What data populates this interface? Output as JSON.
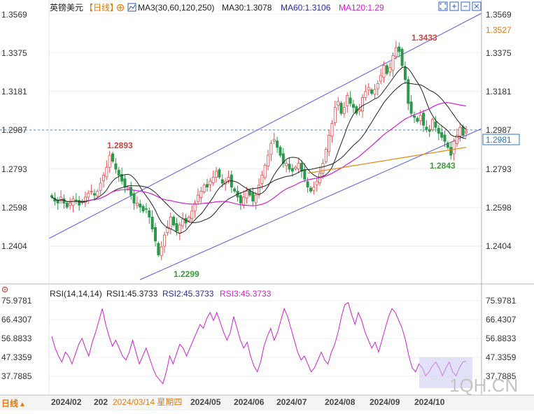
{
  "price_panel": {
    "symbol": "英镑美元",
    "period_tag": "【日线】",
    "ma_label": "MA3(30,60,120,250)",
    "ma30_label": "MA30:1.3078",
    "ma60_label": "MA60:1.3106",
    "ma120_label": "MA120:1.29",
    "y_ticks": [
      "1.3569",
      "1.3375",
      "1.3181",
      "1.2987",
      "1.2793",
      "1.2598",
      "1.2404"
    ],
    "high_label": "1.3527",
    "current_price": "1.2981",
    "annotations": {
      "a1": "1.2893",
      "a2": "1.2299",
      "a3": "1.3433",
      "a4": "1.2843"
    }
  },
  "rsi_panel": {
    "title": "RSI(14,14,14)",
    "rsi1_label": "RSI1:45.3733",
    "rsi2_label": "RSI2:45.3733",
    "rsi3_label": "RSI3:45.3733",
    "y_ticks": [
      "75.9781",
      "66.4307",
      "56.8833",
      "47.3359",
      "37.7885"
    ]
  },
  "footer": {
    "period_button": "日线",
    "x_labels": [
      "2024/02",
      "202",
      "2024/05",
      "2024/06",
      "2024/07",
      "2024/08",
      "2024/09",
      "2024/10"
    ],
    "cursor_date": "2024/03/14 星期四",
    "watermark": "1QH.CN"
  },
  "colors": {
    "up": "#e05050",
    "down": "#2a9a4a",
    "ma30": "#222222",
    "ma60": "#222222",
    "ma120": "#d020d0",
    "ma250": "#e08a10",
    "channel": "#5a5ae8",
    "rsi": "#d020d0"
  },
  "chart_data": [
    {
      "type": "candlestick",
      "title": "英镑美元 日线",
      "ylim": [
        1.233,
        1.36
      ],
      "y_ticks": [
        1.3569,
        1.3375,
        1.3181,
        1.2987,
        1.2793,
        1.2598,
        1.2404
      ],
      "x_axis": [
        "2024/02",
        "2024/05",
        "2024/06",
        "2024/07",
        "2024/08",
        "2024/09",
        "2024/10"
      ],
      "annotated_points": [
        {
          "label": "1.2893",
          "value": 1.2893
        },
        {
          "label": "1.2299",
          "value": 1.2299
        },
        {
          "label": "1.3433",
          "value": 1.3433
        },
        {
          "label": "1.2843",
          "value": 1.2843
        }
      ],
      "close_path": [
        1.265,
        1.263,
        1.262,
        1.265,
        1.262,
        1.26,
        1.262,
        1.264,
        1.263,
        1.261,
        1.263,
        1.265,
        1.267,
        1.268,
        1.266,
        1.268,
        1.272,
        1.276,
        1.28,
        1.286,
        1.283,
        1.279,
        1.276,
        1.273,
        1.27,
        1.27,
        1.266,
        1.262,
        1.262,
        1.26,
        1.258,
        1.259,
        1.255,
        1.249,
        1.243,
        1.236,
        1.24,
        1.246,
        1.25,
        1.255,
        1.251,
        1.248,
        1.251,
        1.254,
        1.252,
        1.255,
        1.258,
        1.262,
        1.266,
        1.268,
        1.271,
        1.27,
        1.273,
        1.275,
        1.278,
        1.275,
        1.272,
        1.273,
        1.275,
        1.27,
        1.268,
        1.265,
        1.262,
        1.265,
        1.268,
        1.266,
        1.263,
        1.266,
        1.271,
        1.276,
        1.281,
        1.286,
        1.292,
        1.294,
        1.29,
        1.286,
        1.282,
        1.282,
        1.279,
        1.278,
        1.28,
        1.282,
        1.278,
        1.274,
        1.27,
        1.268,
        1.27,
        1.273,
        1.277,
        1.282,
        1.289,
        1.296,
        1.302,
        1.31,
        1.313,
        1.307,
        1.31,
        1.316,
        1.312,
        1.31,
        1.307,
        1.309,
        1.315,
        1.318,
        1.32,
        1.317,
        1.319,
        1.322,
        1.326,
        1.331,
        1.327,
        1.33,
        1.336,
        1.34,
        1.338,
        1.331,
        1.324,
        1.312,
        1.307,
        1.305,
        1.303,
        1.306,
        1.301,
        1.299,
        1.298,
        1.304,
        1.3,
        1.297,
        1.295,
        1.293,
        1.29,
        1.286,
        1.293,
        1.296,
        1.3,
        1.296,
        1.298
      ],
      "series": [
        {
          "name": "MA30",
          "last_value": 1.3078
        },
        {
          "name": "MA60",
          "last_value": 1.3106
        },
        {
          "name": "MA120",
          "last_value": 1.29
        }
      ]
    },
    {
      "type": "line",
      "title": "RSI(14,14,14)",
      "ylim": [
        32,
        79
      ],
      "y_ticks": [
        75.9781,
        66.4307,
        56.8833,
        47.3359,
        37.7885
      ],
      "series": [
        {
          "name": "RSI1",
          "last_value": 45.3733,
          "values": [
            58,
            52,
            48,
            45,
            50,
            48,
            44,
            49,
            54,
            57,
            52,
            48,
            55,
            60,
            66,
            72,
            64,
            58,
            53,
            56,
            52,
            48,
            46,
            50,
            56,
            50,
            44,
            48,
            52,
            47,
            42,
            38,
            36,
            34,
            40,
            48,
            44,
            49,
            54,
            52,
            48,
            52,
            56,
            60,
            64,
            62,
            67,
            70,
            66,
            70,
            65,
            60,
            56,
            60,
            68,
            62,
            56,
            52,
            55,
            48,
            43,
            40,
            45,
            53,
            58,
            62,
            56,
            60,
            66,
            72,
            68,
            62,
            56,
            50,
            46,
            48,
            44,
            40,
            42,
            46,
            50,
            46,
            44,
            50,
            54,
            60,
            68,
            74,
            75,
            69,
            64,
            70,
            66,
            60,
            56,
            52,
            55,
            50,
            56,
            62,
            68,
            72,
            70,
            66,
            62,
            56,
            48,
            42,
            40,
            44,
            42,
            38,
            40,
            43,
            45,
            42,
            38,
            42,
            45,
            40,
            38,
            42,
            45,
            45.37
          ]
        }
      ]
    }
  ]
}
